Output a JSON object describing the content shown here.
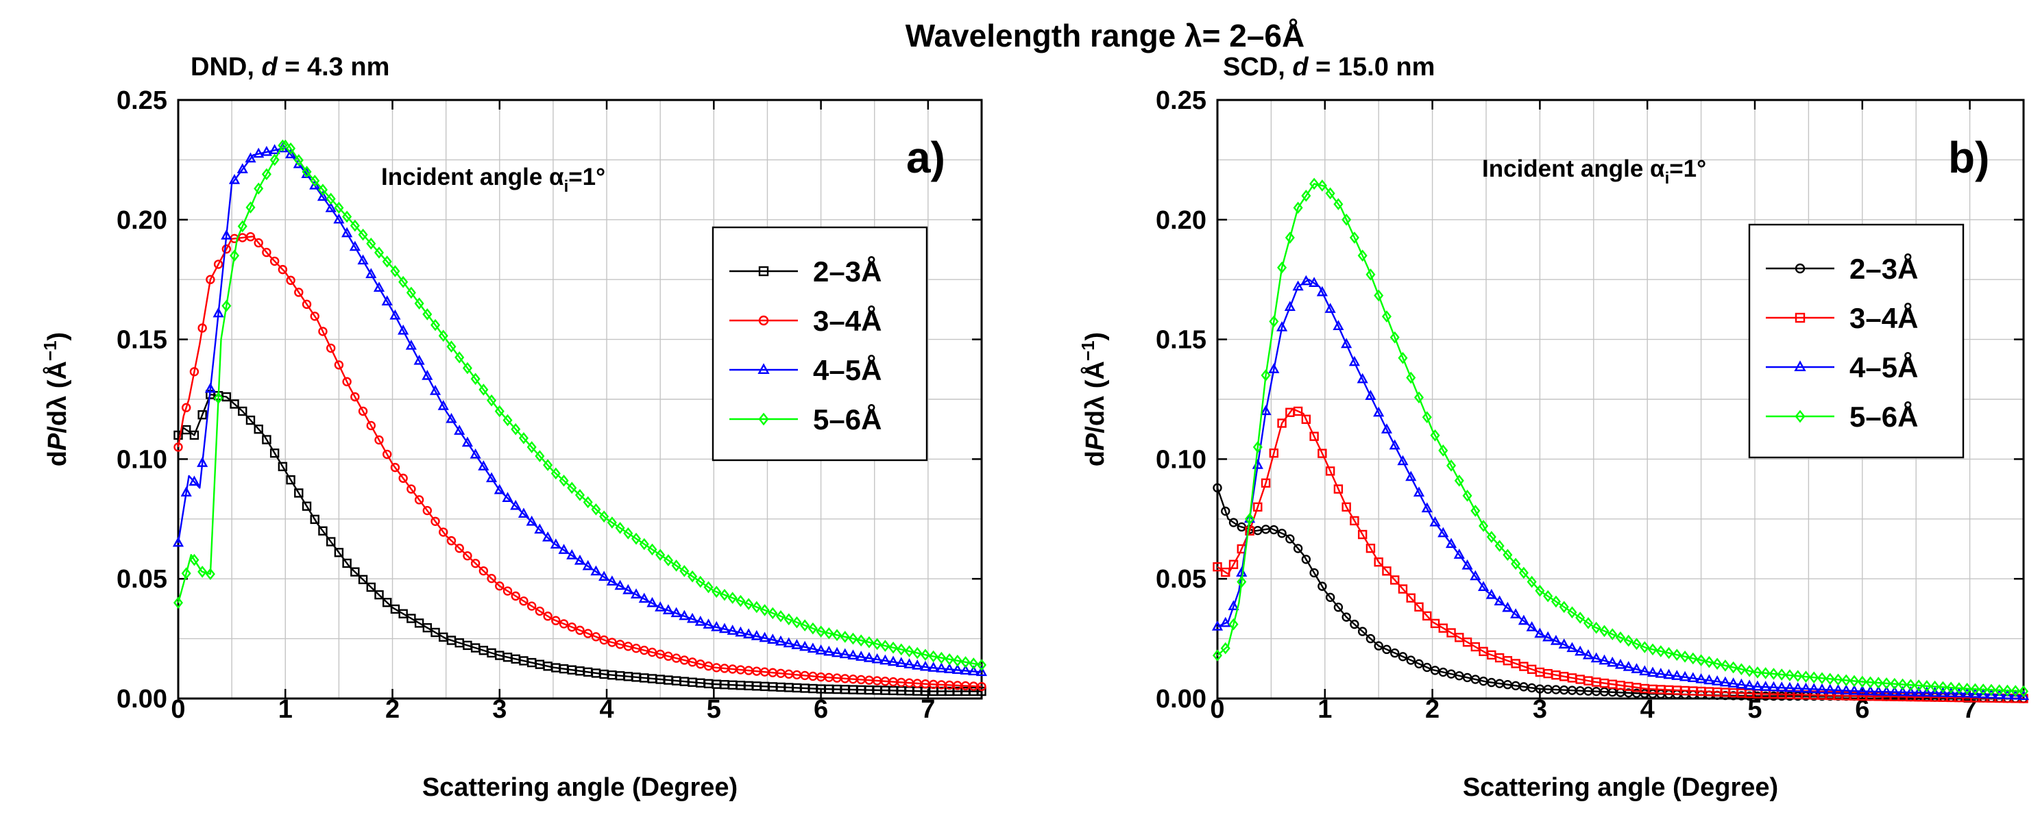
{
  "figure": {
    "title": "Wavelength range λ= 2–6Å"
  },
  "chart_data": [
    {
      "type": "line",
      "panel_label": "a)",
      "title_prefix": "DND, ",
      "title_var": "d",
      "title_suffix": " = 4.3 nm",
      "annotation_prefix": "Incident angle α",
      "annotation_sub": "i",
      "annotation_suffix": "=1°",
      "xlabel": "Scattering angle (Degree)",
      "ylabel_d1": "d",
      "ylabel_var": "P",
      "ylabel_mid": "/dλ (Å",
      "ylabel_sup": "−1",
      "ylabel_end": ")",
      "xlim": [
        0,
        7.5
      ],
      "ylim": [
        0,
        0.25
      ],
      "xticks": [
        "0",
        "1",
        "2",
        "3",
        "4",
        "5",
        "6",
        "7"
      ],
      "yticks": [
        "0.00",
        "0.05",
        "0.10",
        "0.15",
        "0.20",
        "0.25"
      ],
      "grid": true,
      "legend_position": "right",
      "series": [
        {
          "name": "2–3Å",
          "color": "#000000",
          "marker": "square",
          "x": [
            0,
            0.05,
            0.15,
            0.3,
            0.45,
            0.6,
            0.8,
            1.0,
            1.3,
            1.6,
            2.0,
            2.5,
            3.0,
            3.5,
            4.0,
            5.0,
            6.0,
            7.0,
            7.5
          ],
          "y": [
            0.11,
            0.113,
            0.11,
            0.127,
            0.126,
            0.12,
            0.11,
            0.095,
            0.073,
            0.055,
            0.038,
            0.025,
            0.018,
            0.013,
            0.01,
            0.006,
            0.004,
            0.003,
            0.003
          ]
        },
        {
          "name": "3–4Å",
          "color": "#ff0000",
          "marker": "circle",
          "x": [
            0,
            0.05,
            0.1,
            0.2,
            0.3,
            0.5,
            0.7,
            0.85,
            1.0,
            1.3,
            1.6,
            2.0,
            2.5,
            3.0,
            3.5,
            4.0,
            5.0,
            6.0,
            7.0,
            7.5
          ],
          "y": [
            0.105,
            0.118,
            0.125,
            0.148,
            0.175,
            0.192,
            0.193,
            0.185,
            0.178,
            0.158,
            0.13,
            0.098,
            0.068,
            0.047,
            0.033,
            0.024,
            0.013,
            0.009,
            0.006,
            0.005
          ]
        },
        {
          "name": "4–5Å",
          "color": "#0000ff",
          "marker": "triangle",
          "x": [
            0,
            0.1,
            0.2,
            0.35,
            0.5,
            0.7,
            0.9,
            1.0,
            1.2,
            1.5,
            2.0,
            2.5,
            3.0,
            3.5,
            4.0,
            4.5,
            5.0,
            6.0,
            7.0,
            7.5
          ],
          "y": [
            0.065,
            0.093,
            0.088,
            0.15,
            0.215,
            0.227,
            0.229,
            0.23,
            0.219,
            0.2,
            0.162,
            0.12,
            0.087,
            0.065,
            0.05,
            0.038,
            0.03,
            0.02,
            0.013,
            0.011
          ]
        },
        {
          "name": "5–6Å",
          "color": "#00ff00",
          "marker": "diamond",
          "x": [
            0,
            0.05,
            0.12,
            0.22,
            0.3,
            0.4,
            0.55,
            0.75,
            0.9,
            1.0,
            1.2,
            1.5,
            2.0,
            2.5,
            3.0,
            3.5,
            4.0,
            5.0,
            6.0,
            7.0,
            7.5
          ],
          "y": [
            0.04,
            0.048,
            0.06,
            0.053,
            0.052,
            0.15,
            0.192,
            0.213,
            0.225,
            0.233,
            0.22,
            0.205,
            0.18,
            0.15,
            0.12,
            0.095,
            0.075,
            0.045,
            0.028,
            0.018,
            0.014
          ]
        }
      ]
    },
    {
      "type": "line",
      "panel_label": "b)",
      "title_prefix": "SCD, ",
      "title_var": "d",
      "title_suffix": " = 15.0 nm",
      "annotation_prefix": "Incident angle α",
      "annotation_sub": "i",
      "annotation_suffix": "=1°",
      "xlabel": "Scattering angle (Degree)",
      "ylabel_d1": "d",
      "ylabel_var": "P",
      "ylabel_mid": "/dλ (Å",
      "ylabel_sup": "−1",
      "ylabel_end": ")",
      "xlim": [
        0,
        7.5
      ],
      "ylim": [
        0,
        0.25
      ],
      "xticks": [
        "0",
        "1",
        "2",
        "3",
        "4",
        "5",
        "6",
        "7"
      ],
      "yticks": [
        "0.00",
        "0.05",
        "0.10",
        "0.15",
        "0.20",
        "0.25"
      ],
      "grid": true,
      "legend_position": "right",
      "series": [
        {
          "name": "2–3Å",
          "color": "#000000",
          "marker": "circle",
          "x": [
            0,
            0.1,
            0.2,
            0.35,
            0.5,
            0.65,
            0.8,
            1.0,
            1.2,
            1.5,
            2.0,
            2.5,
            3.0,
            3.5,
            4.0,
            5.0,
            6.0,
            7.5
          ],
          "y": [
            0.088,
            0.075,
            0.072,
            0.07,
            0.071,
            0.068,
            0.06,
            0.045,
            0.034,
            0.022,
            0.012,
            0.007,
            0.004,
            0.003,
            0.002,
            0.001,
            0.001,
            0.0
          ]
        },
        {
          "name": "3–4Å",
          "color": "#ff0000",
          "marker": "square",
          "x": [
            0,
            0.1,
            0.2,
            0.3,
            0.45,
            0.6,
            0.7,
            0.8,
            1.0,
            1.2,
            1.5,
            2.0,
            2.5,
            3.0,
            3.5,
            4.0,
            5.0,
            6.0,
            7.5
          ],
          "y": [
            0.055,
            0.052,
            0.06,
            0.07,
            0.09,
            0.115,
            0.121,
            0.119,
            0.1,
            0.08,
            0.057,
            0.032,
            0.019,
            0.011,
            0.007,
            0.004,
            0.002,
            0.001,
            0.0
          ]
        },
        {
          "name": "4–5Å",
          "color": "#0000ff",
          "marker": "triangle",
          "x": [
            0,
            0.1,
            0.2,
            0.3,
            0.45,
            0.6,
            0.75,
            0.85,
            0.95,
            1.1,
            1.3,
            1.6,
            2.0,
            2.5,
            3.0,
            3.5,
            4.0,
            5.0,
            6.0,
            7.0,
            7.5
          ],
          "y": [
            0.03,
            0.032,
            0.045,
            0.075,
            0.12,
            0.155,
            0.172,
            0.175,
            0.172,
            0.158,
            0.138,
            0.11,
            0.075,
            0.045,
            0.027,
            0.017,
            0.011,
            0.005,
            0.003,
            0.002,
            0.001
          ]
        },
        {
          "name": "5–6Å",
          "color": "#00ff00",
          "marker": "diamond",
          "x": [
            0,
            0.1,
            0.2,
            0.3,
            0.45,
            0.6,
            0.75,
            0.9,
            1.0,
            1.15,
            1.4,
            1.7,
            2.0,
            2.5,
            3.0,
            3.5,
            4.0,
            5.0,
            6.0,
            7.0,
            7.5
          ],
          "y": [
            0.018,
            0.022,
            0.04,
            0.075,
            0.135,
            0.18,
            0.205,
            0.215,
            0.214,
            0.205,
            0.18,
            0.145,
            0.112,
            0.07,
            0.045,
            0.03,
            0.021,
            0.011,
            0.007,
            0.004,
            0.003
          ]
        }
      ]
    }
  ]
}
